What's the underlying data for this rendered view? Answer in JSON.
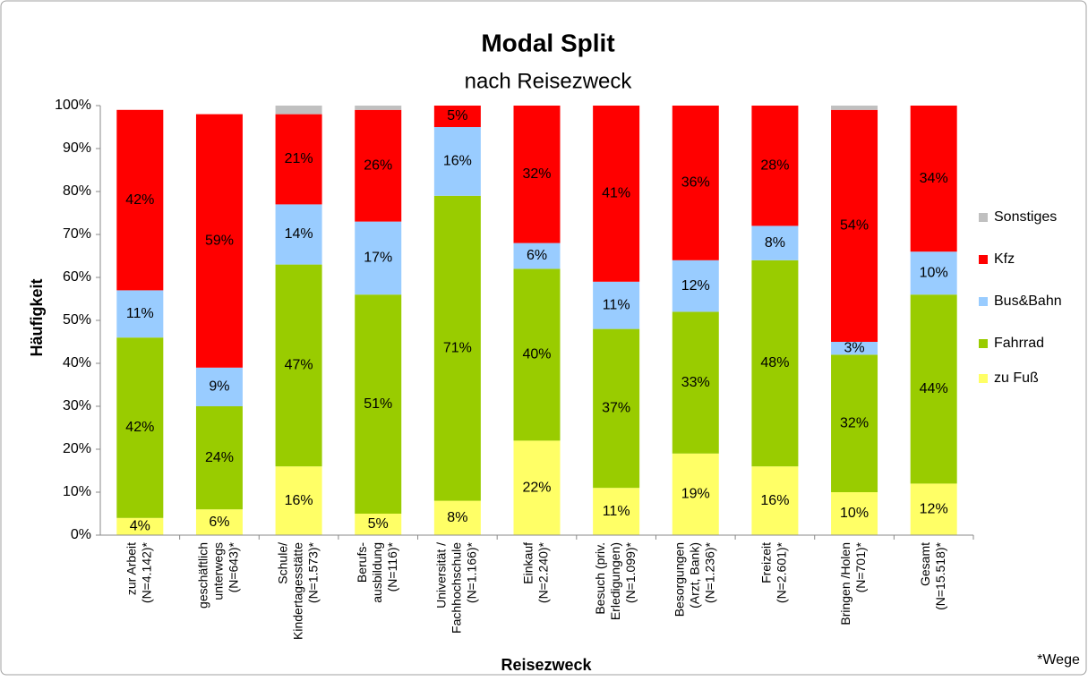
{
  "chart_data": {
    "type": "stacked_bar",
    "title": "Modal Split",
    "subtitle": "nach Reisezweck",
    "x_label": "Reisezweck",
    "y_label": "Häufigkeit",
    "annotation": "*Wege",
    "categories": [
      [
        "zur Arbeit",
        "(N=4.142)*"
      ],
      [
        "geschäftlich",
        "unterwegs",
        "(N=643)*"
      ],
      [
        "Schule/",
        "Kindertagesstätte",
        "(N=1.573)*"
      ],
      [
        "Berufs-",
        "ausbildung",
        "(N=116)*"
      ],
      [
        "Universität /",
        "Fachhochschule",
        "(N=1.166)*"
      ],
      [
        "Einkauf",
        "(N=2.240)*"
      ],
      [
        "Besuch (priv.",
        "Erledigungen)",
        "(N=1.099)*"
      ],
      [
        "Besorgungen",
        "(Arzt, Bank)",
        "(N=1.236)*"
      ],
      [
        "Freizeit",
        "(N=2.601)*"
      ],
      [
        "Bringen /Holen",
        "(N=701)*"
      ],
      [
        "Gesamt",
        "(N=15.518)*"
      ]
    ],
    "series": [
      {
        "name": "zu Fuß",
        "color": "#ffff66",
        "values": [
          4,
          6,
          16,
          5,
          8,
          22,
          11,
          19,
          16,
          10,
          12
        ],
        "value_labels": [
          "4%",
          "6%",
          "16%",
          "5%",
          "8%",
          "22%",
          "11%",
          "19%",
          "16%",
          "10%",
          "12%"
        ]
      },
      {
        "name": "Fahrrad",
        "color": "#99cc00",
        "values": [
          42,
          24,
          47,
          51,
          71,
          40,
          37,
          33,
          48,
          32,
          44
        ],
        "value_labels": [
          "42%",
          "24%",
          "47%",
          "51%",
          "71%",
          "40%",
          "37%",
          "33%",
          "48%",
          "32%",
          "44%"
        ]
      },
      {
        "name": "Bus&Bahn",
        "color": "#99ccff",
        "values": [
          11,
          9,
          14,
          17,
          16,
          6,
          11,
          12,
          8,
          3,
          10
        ],
        "value_labels": [
          "11%",
          "9%",
          "14%",
          "17%",
          "16%",
          "6%",
          "11%",
          "12%",
          "8%",
          "3%",
          "10%"
        ]
      },
      {
        "name": "Kfz",
        "color": "#ff0000",
        "values": [
          42,
          59,
          21,
          26,
          5,
          32,
          41,
          36,
          28,
          54,
          34
        ],
        "value_labels": [
          "42%",
          "59%",
          "21%",
          "26%",
          "5%",
          "32%",
          "41%",
          "36%",
          "28%",
          "54%",
          "34%"
        ]
      },
      {
        "name": "Sonstiges",
        "color": "#c0c0c0",
        "values": [
          0,
          0,
          2,
          1,
          0,
          0,
          0,
          0,
          0,
          1,
          0
        ]
      }
    ],
    "ylim": [
      0,
      100
    ],
    "yticks": [
      {
        "value": 0,
        "label": "0%"
      },
      {
        "value": 10,
        "label": "10%"
      },
      {
        "value": 20,
        "label": "20%"
      },
      {
        "value": 30,
        "label": "30%"
      },
      {
        "value": 40,
        "label": "40%"
      },
      {
        "value": 50,
        "label": "50%"
      },
      {
        "value": 60,
        "label": "60%"
      },
      {
        "value": 70,
        "label": "70%"
      },
      {
        "value": 80,
        "label": "80%"
      },
      {
        "value": 90,
        "label": "90%"
      },
      {
        "value": 100,
        "label": "100%"
      }
    ],
    "legend": "right"
  }
}
